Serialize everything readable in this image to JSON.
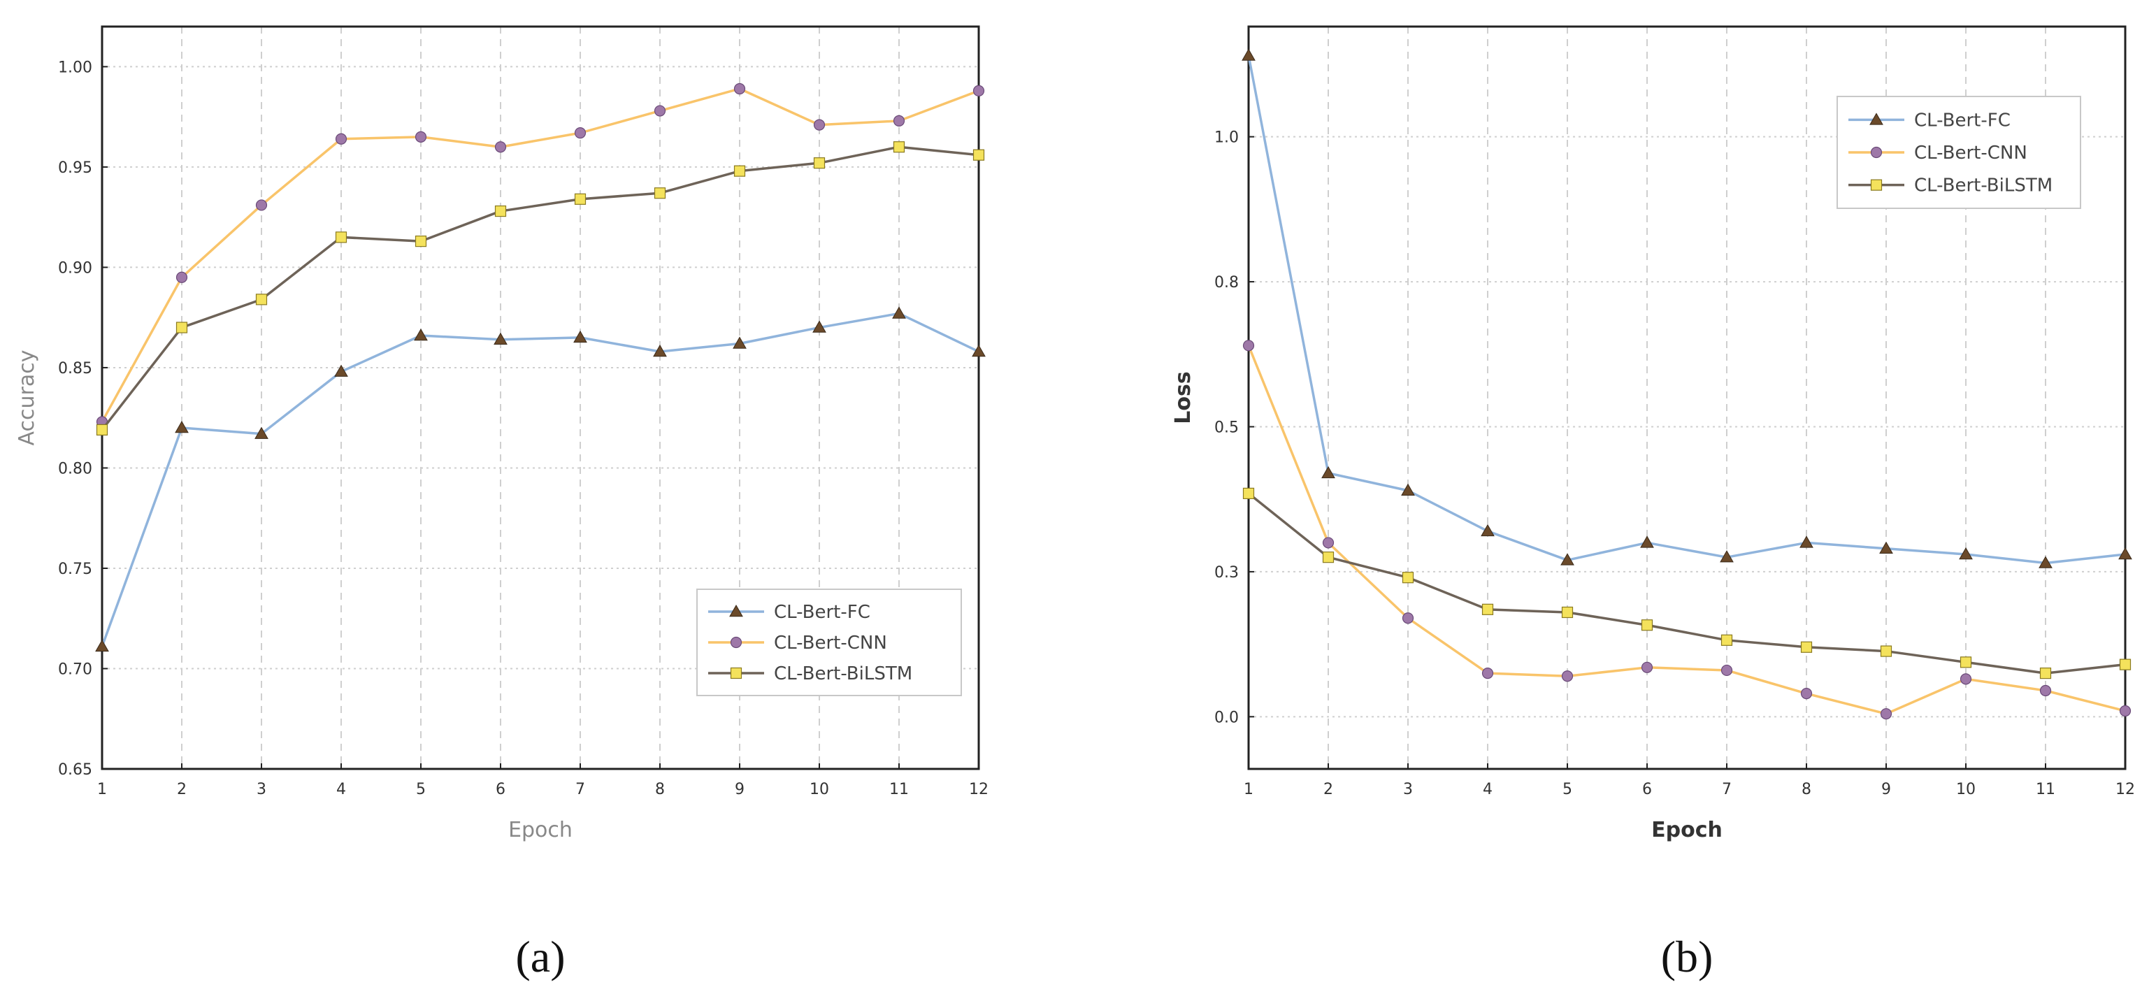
{
  "chart_data": [
    {
      "type": "line",
      "panel_label": "(a)",
      "xlabel": "Epoch",
      "ylabel": "Accuracy",
      "x": [
        1,
        2,
        3,
        4,
        5,
        6,
        7,
        8,
        9,
        10,
        11,
        12
      ],
      "xlim": [
        1,
        12
      ],
      "ylim": [
        0.65,
        1.02
      ],
      "y_ticks": [
        0.65,
        0.7,
        0.75,
        0.8,
        0.85,
        0.9,
        0.95,
        1.0
      ],
      "y_tick_labels": [
        "0.65",
        "0.70",
        "0.75",
        "0.80",
        "0.85",
        "0.90",
        "0.95",
        "1.00"
      ],
      "legend_position": "bottom-right",
      "grid": true,
      "series": [
        {
          "name": "CL-Bert-FC",
          "color": "#90B4DC",
          "marker": "triangle",
          "marker_color": "#6B4A2A",
          "values": [
            0.711,
            0.82,
            0.817,
            0.848,
            0.866,
            0.864,
            0.865,
            0.858,
            0.862,
            0.87,
            0.877,
            0.858
          ]
        },
        {
          "name": "CL-Bert-CNN",
          "color": "#F9C46A",
          "marker": "circle",
          "marker_color": "#9E78A8",
          "values": [
            0.823,
            0.895,
            0.931,
            0.964,
            0.965,
            0.96,
            0.967,
            0.978,
            0.989,
            0.971,
            0.973,
            0.988
          ]
        },
        {
          "name": "CL-Bert-BiLSTM",
          "color": "#6E6358",
          "marker": "square",
          "marker_color": "#F4E25C",
          "values": [
            0.819,
            0.87,
            0.884,
            0.915,
            0.913,
            0.928,
            0.934,
            0.937,
            0.948,
            0.952,
            0.96,
            0.956
          ]
        }
      ]
    },
    {
      "type": "line",
      "panel_label": "(b)",
      "xlabel": "Epoch",
      "ylabel": "Loss",
      "x": [
        1,
        2,
        3,
        4,
        5,
        6,
        7,
        8,
        9,
        10,
        11,
        12
      ],
      "xlim": [
        1,
        12
      ],
      "ylim": [
        -0.09,
        1.19
      ],
      "y_ticks": [
        0.0,
        0.25,
        0.5,
        0.75,
        1.0
      ],
      "y_tick_labels": [
        "0.0",
        "0.3",
        "0.5",
        "0.8",
        "1.0"
      ],
      "legend_position": "top-right",
      "grid": true,
      "series": [
        {
          "name": "CL-Bert-FC",
          "color": "#90B4DC",
          "marker": "triangle",
          "marker_color": "#6B4A2A",
          "values": [
            1.14,
            0.42,
            0.39,
            0.32,
            0.27,
            0.3,
            0.275,
            0.3,
            0.29,
            0.28,
            0.265,
            0.28
          ]
        },
        {
          "name": "CL-Bert-CNN",
          "color": "#F9C46A",
          "marker": "circle",
          "marker_color": "#9E78A8",
          "values": [
            0.64,
            0.3,
            0.17,
            0.075,
            0.07,
            0.085,
            0.08,
            0.04,
            0.005,
            0.065,
            0.045,
            0.01
          ]
        },
        {
          "name": "CL-Bert-BiLSTM",
          "color": "#6E6358",
          "marker": "square",
          "marker_color": "#F4E25C",
          "values": [
            0.385,
            0.275,
            0.24,
            0.185,
            0.18,
            0.158,
            0.132,
            0.12,
            0.113,
            0.094,
            0.075,
            0.09
          ]
        }
      ]
    }
  ]
}
